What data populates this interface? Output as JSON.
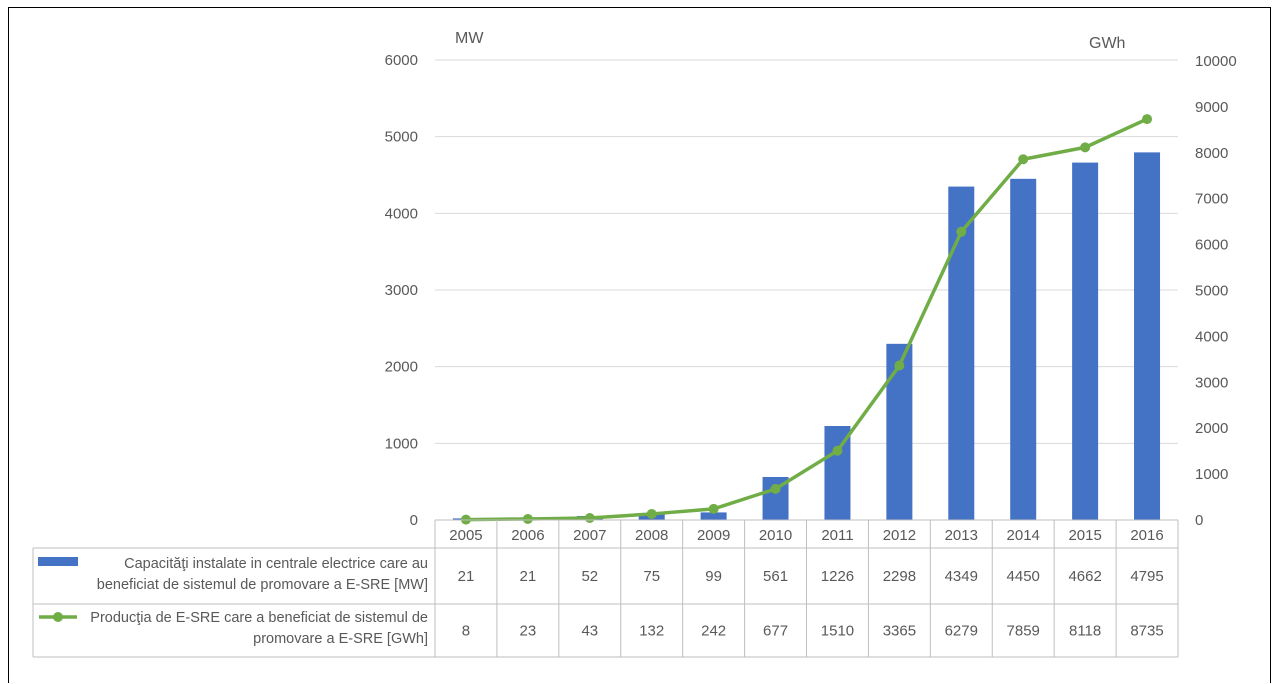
{
  "chart_data": {
    "type": "bar",
    "categories": [
      "2005",
      "2006",
      "2007",
      "2008",
      "2009",
      "2010",
      "2011",
      "2012",
      "2013",
      "2014",
      "2015",
      "2016"
    ],
    "series": [
      {
        "name": "Capacităţi instalate in centrale electrice care au beneficiat de sistemul de promovare a E-SRE [MW]",
        "name_lines": [
          "Capacităţi instalate in centrale electrice care au",
          "beneficiat de sistemul de promovare a E-SRE [MW]"
        ],
        "type": "bar",
        "axis": "left",
        "color": "#4472C4",
        "values": [
          21,
          21,
          52,
          75,
          99,
          561,
          1226,
          2298,
          4349,
          4450,
          4662,
          4795
        ]
      },
      {
        "name": "Producţia de E-SRE care a beneficiat de sistemul de promovare a E-SRE [GWh]",
        "name_lines": [
          "Producţia de E-SRE care a beneficiat de sistemul de",
          "promovare a E-SRE [GWh]"
        ],
        "type": "line",
        "axis": "right",
        "color": "#70AD47",
        "values": [
          8,
          23,
          43,
          132,
          242,
          677,
          1510,
          3365,
          6279,
          7859,
          8118,
          8735
        ]
      }
    ],
    "left_axis": {
      "unit": "MW",
      "ylim": [
        0,
        6000
      ],
      "ticks": [
        0,
        1000,
        2000,
        3000,
        4000,
        5000,
        6000
      ]
    },
    "right_axis": {
      "unit": "GWh",
      "ylim": [
        0,
        10000
      ],
      "ticks": [
        0,
        1000,
        2000,
        3000,
        4000,
        5000,
        6000,
        7000,
        8000,
        9000,
        10000
      ]
    },
    "grid": true,
    "data_table": true
  }
}
